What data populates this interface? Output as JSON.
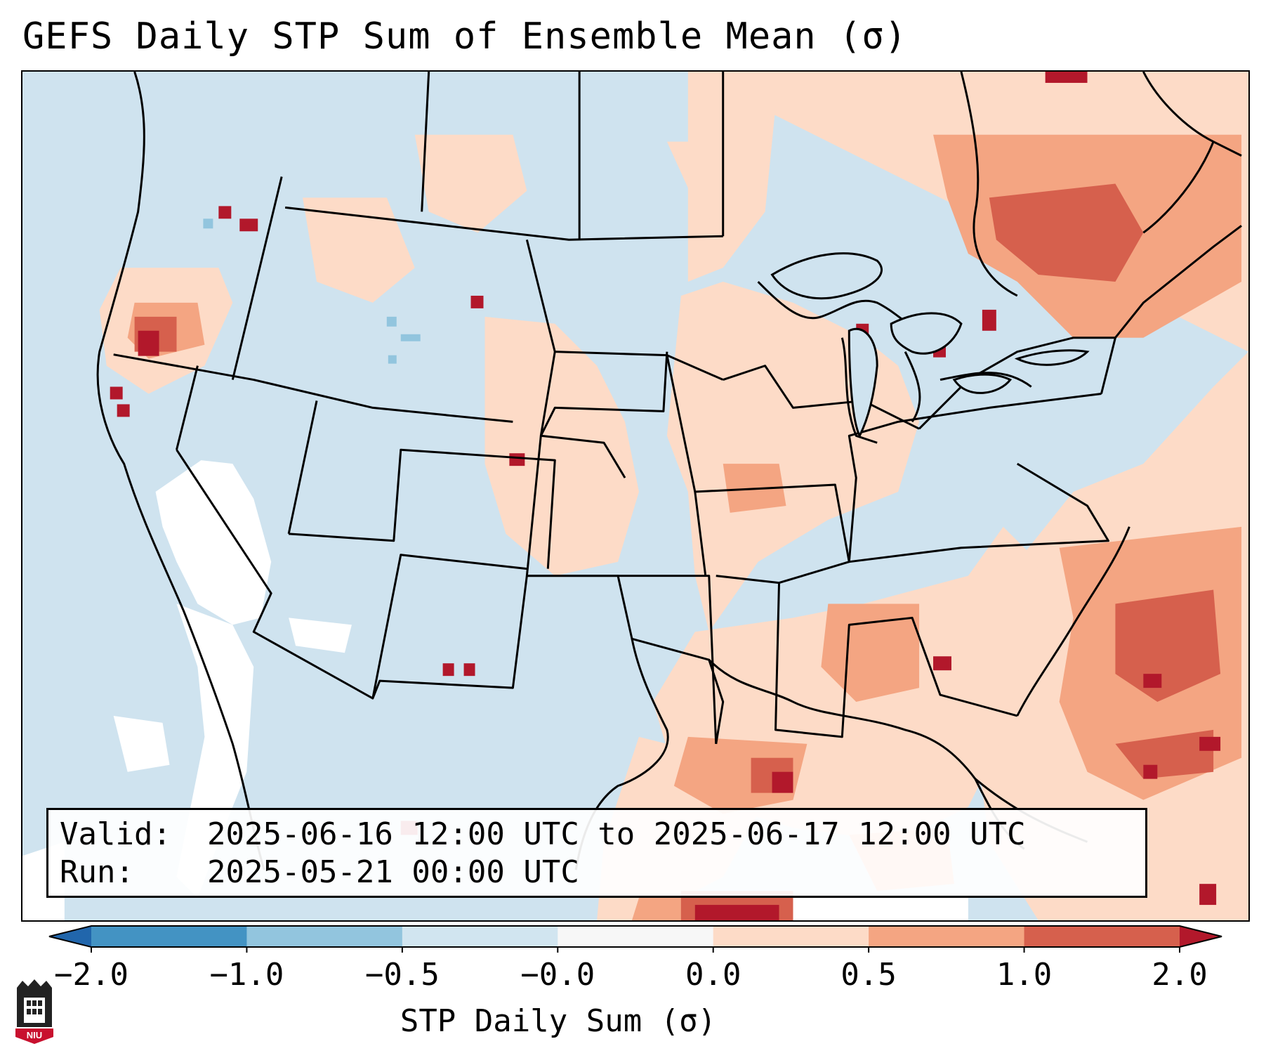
{
  "title": "GEFS Daily STP Sum of Ensemble Mean (σ)",
  "info": {
    "valid_key": "Valid:",
    "valid_value": "2025-06-16 12:00 UTC to 2025-06-17 12:00 UTC",
    "run_key": "Run:",
    "run_value": "2025-05-21 00:00 UTC"
  },
  "colorbar": {
    "label": "STP Daily Sum (σ)",
    "ticks": [
      "−2.0",
      "−1.0",
      "−0.5",
      "−0.0",
      "0.0",
      "0.5",
      "1.0",
      "2.0"
    ],
    "bins": [
      {
        "from": -2.0,
        "to": -1.0,
        "color": "#4393c3"
      },
      {
        "from": -1.0,
        "to": -0.5,
        "color": "#92c5de"
      },
      {
        "from": -0.5,
        "to": -0.0,
        "color": "#d1e5f0"
      },
      {
        "from": -0.0,
        "to": 0.0,
        "color": "#f7f7f7"
      },
      {
        "from": 0.0,
        "to": 0.5,
        "color": "#fddbc7"
      },
      {
        "from": 0.5,
        "to": 1.0,
        "color": "#f4a582"
      },
      {
        "from": 1.0,
        "to": 2.0,
        "color": "#d6604d"
      }
    ],
    "under_color": "#2166ac",
    "over_color": "#b2182b"
  },
  "map": {
    "ocean_color": "#cfe3ef",
    "neutral_color": "#ffffff",
    "light_pos_color": "#fddbc7",
    "mid_pos_color": "#f4a582",
    "high_pos_color": "#d6604d",
    "max_pos_color": "#b2182b",
    "neg_color": "#92c5de"
  },
  "logo": {
    "text": "NIU",
    "name": "niu-logo"
  }
}
